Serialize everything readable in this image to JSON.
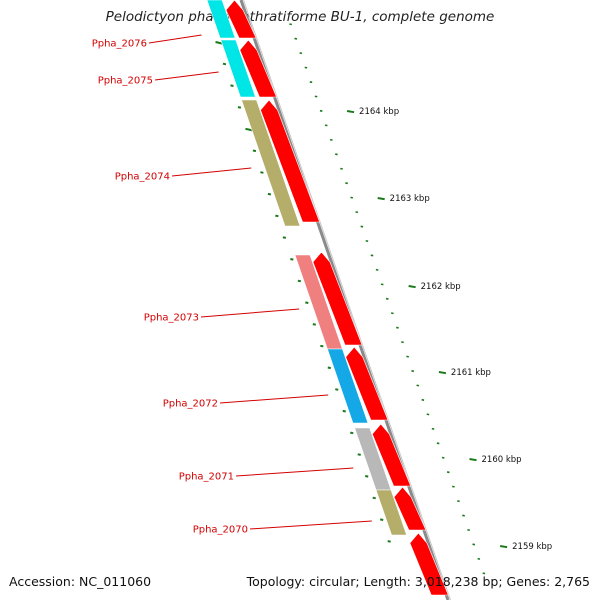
{
  "title": "Pelodictyon phaeoclathratiforme BU-1, complete genome",
  "footer": {
    "accession": "Accession: NC_011060",
    "summary": "Topology: circular; Length: 3,018,238 bp; Genes: 2,765"
  },
  "genes": [
    {
      "label": "Ppha_2076",
      "color": "#00e5e5"
    },
    {
      "label": "Ppha_2075",
      "color": "#00e5e5"
    },
    {
      "label": "Ppha_2074",
      "color": "#b5ae6a"
    },
    {
      "label": "Ppha_2073",
      "color": "#f08080"
    },
    {
      "label": "Ppha_2072",
      "color": "#14a9e6"
    },
    {
      "label": "Ppha_2071",
      "color": "#b8b8b8"
    },
    {
      "label": "Ppha_2070",
      "color": "#b5ae6a"
    }
  ],
  "scale_labels": [
    "2164 kbp",
    "2163 kbp",
    "2162 kbp",
    "2161 kbp",
    "2160 kbp",
    "2159 kbp"
  ],
  "colors": {
    "strand_arrow": "#ff0000",
    "backbone": "#8a8a8a",
    "tick": "#1a7a1a",
    "label_line": "#d40000"
  }
}
